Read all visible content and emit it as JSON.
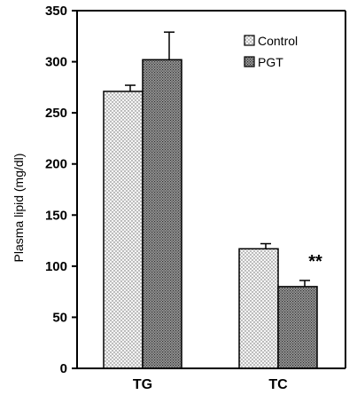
{
  "chart_data": {
    "type": "bar",
    "categories": [
      "TG",
      "TC"
    ],
    "series": [
      {
        "name": "Control",
        "values": [
          271,
          117
        ],
        "errors": [
          6,
          5
        ]
      },
      {
        "name": "PGT",
        "values": [
          302,
          80
        ],
        "errors": [
          27,
          6
        ]
      }
    ],
    "ylabel": "Plasma lipid (mg/dl)",
    "xlabel": "",
    "ylim": [
      0,
      350
    ],
    "yticks": [
      0,
      50,
      100,
      150,
      200,
      250,
      300,
      350
    ],
    "legend_position": "top-right",
    "grid": false,
    "annotations": [
      {
        "category": "TC",
        "series": "PGT",
        "text": "**"
      }
    ],
    "colors": {
      "control": "#e9e9e9",
      "pgt": "#7a7a7a"
    }
  }
}
